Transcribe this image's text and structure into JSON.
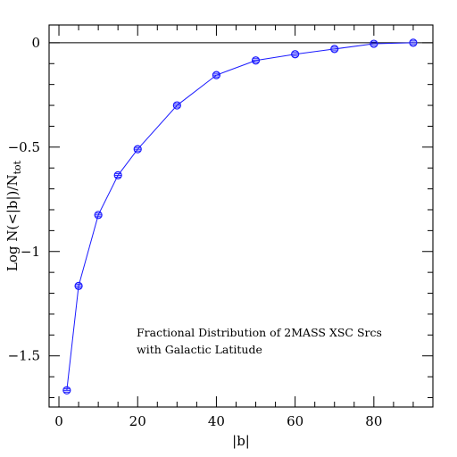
{
  "chart_data": {
    "type": "line",
    "title": "",
    "xlabel": "|b|",
    "ylabel_main": "Log N(<|b|)/N",
    "ylabel_sub": "tot",
    "xlim": [
      -2.5,
      95
    ],
    "ylim": [
      -1.745,
      0.085
    ],
    "x_ticks": [
      0,
      20,
      40,
      60,
      80
    ],
    "x_tick_labels": [
      "0",
      "20",
      "40",
      "60",
      "80"
    ],
    "x_minor_step": 5,
    "y_ticks": [
      0,
      -0.5,
      -1,
      -1.5
    ],
    "y_tick_labels": [
      "0",
      "−0.5",
      "−1",
      "−1.5"
    ],
    "y_minor_step": 0.1,
    "reference_line_y": 0,
    "line_color": "#1a1aff",
    "marker_color": "#1a1aff",
    "annotation_lines": [
      "Fractional Distribution of 2MASS XSC Srcs",
      "with Galactic Latitude"
    ],
    "series": [
      {
        "x": [
          2,
          5,
          10,
          15,
          20,
          30,
          40,
          50,
          60,
          70,
          80,
          90
        ],
        "y": [
          -1.665,
          -1.165,
          -0.825,
          -0.635,
          -0.51,
          -0.3,
          -0.155,
          -0.085,
          -0.055,
          -0.03,
          -0.005,
          0
        ]
      }
    ]
  }
}
